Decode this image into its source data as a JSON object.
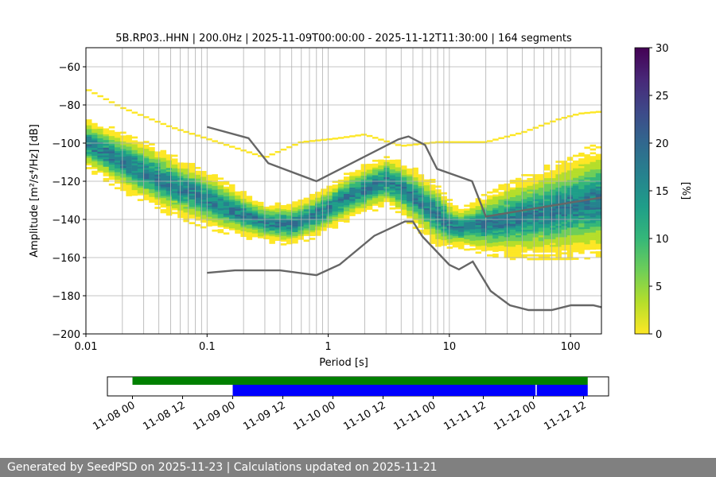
{
  "chart_data": {
    "type": "heatmap",
    "title": "5B.RP03..HHN | 200.0Hz | 2025-11-09T00:00:00 - 2025-11-12T11:30:00 | 164 segments",
    "xlabel": "Period [s]",
    "ylabel": "Amplitude [m²/s⁴/Hz] [dB]",
    "xscale": "log",
    "xlim": [
      0.01,
      180
    ],
    "ylim": [
      -200,
      -50
    ],
    "x_ticks": [
      {
        "value": 0.01,
        "label": "0.01"
      },
      {
        "value": 0.1,
        "label": "0.1"
      },
      {
        "value": 1,
        "label": "1"
      },
      {
        "value": 10,
        "label": "10"
      },
      {
        "value": 100,
        "label": "100"
      }
    ],
    "y_ticks": [
      {
        "value": -60,
        "label": "−60"
      },
      {
        "value": -80,
        "label": "−80"
      },
      {
        "value": -100,
        "label": "−100"
      },
      {
        "value": -120,
        "label": "−120"
      },
      {
        "value": -140,
        "label": "−140"
      },
      {
        "value": -160,
        "label": "−160"
      },
      {
        "value": -180,
        "label": "−180"
      },
      {
        "value": -200,
        "label": "−200"
      }
    ],
    "colorbar": {
      "label": "[%]",
      "range": [
        0,
        30
      ],
      "ticks": [
        {
          "value": 0,
          "label": "0"
        },
        {
          "value": 5,
          "label": "5"
        },
        {
          "value": 10,
          "label": "10"
        },
        {
          "value": 15,
          "label": "15"
        },
        {
          "value": 20,
          "label": "20"
        },
        {
          "value": 25,
          "label": "25"
        },
        {
          "value": 30,
          "label": "30"
        }
      ],
      "colors": [
        "#fde725",
        "#b5de2b",
        "#6ece58",
        "#35b779",
        "#1f9e89",
        "#26828e",
        "#31688e",
        "#3e4989",
        "#482878",
        "#440154"
      ]
    },
    "psd_mode": [
      [
        0.01,
        -100
      ],
      [
        0.02,
        -110
      ],
      [
        0.05,
        -122
      ],
      [
        0.1,
        -130
      ],
      [
        0.2,
        -138
      ],
      [
        0.3,
        -142
      ],
      [
        0.5,
        -143
      ],
      [
        0.8,
        -138
      ],
      [
        1.5,
        -128
      ],
      [
        3,
        -120
      ],
      [
        4,
        -124
      ],
      [
        6,
        -132
      ],
      [
        10,
        -143
      ],
      [
        12,
        -145
      ],
      [
        20,
        -143
      ],
      [
        50,
        -138
      ],
      [
        100,
        -134
      ],
      [
        180,
        -130
      ]
    ],
    "psd_spread": [
      [
        0.01,
        8
      ],
      [
        0.03,
        10
      ],
      [
        0.1,
        9
      ],
      [
        0.3,
        6
      ],
      [
        0.8,
        7
      ],
      [
        3,
        8
      ],
      [
        8,
        10
      ],
      [
        12,
        6
      ],
      [
        30,
        12
      ],
      [
        100,
        16
      ],
      [
        180,
        18
      ]
    ],
    "psd_outliers": [
      [
        0.01,
        -72
      ],
      [
        0.02,
        -82
      ],
      [
        0.05,
        -92
      ],
      [
        0.3,
        -108
      ],
      [
        0.6,
        -100
      ],
      [
        1.2,
        -98
      ],
      [
        2,
        -96
      ],
      [
        4,
        -102
      ],
      [
        8,
        -100
      ],
      [
        20,
        -100
      ],
      [
        40,
        -95
      ],
      [
        80,
        -88
      ],
      [
        120,
        -85
      ],
      [
        180,
        -84
      ]
    ],
    "nhnm": [
      [
        0.1,
        -91.5
      ],
      [
        0.22,
        -97.4
      ],
      [
        0.32,
        -110.5
      ],
      [
        0.8,
        -120
      ],
      [
        3.8,
        -98
      ],
      [
        4.6,
        -96.5
      ],
      [
        6.3,
        -101
      ],
      [
        7.9,
        -113.5
      ],
      [
        15.4,
        -120
      ],
      [
        20,
        -138.5
      ],
      [
        180,
        -128.5
      ]
    ],
    "nlnm": [
      [
        0.1,
        -168
      ],
      [
        0.17,
        -166.7
      ],
      [
        0.4,
        -166.7
      ],
      [
        0.8,
        -169.2
      ],
      [
        1.24,
        -163.7
      ],
      [
        2.4,
        -148.6
      ],
      [
        4.3,
        -141.1
      ],
      [
        5,
        -141.1
      ],
      [
        6,
        -149
      ],
      [
        10,
        -163.8
      ],
      [
        12,
        -166.2
      ],
      [
        15.6,
        -162.1
      ],
      [
        21.9,
        -177.5
      ],
      [
        31.6,
        -185
      ],
      [
        45,
        -187.5
      ],
      [
        70,
        -187.5
      ],
      [
        101,
        -185
      ],
      [
        154,
        -185
      ],
      [
        180,
        -186
      ]
    ],
    "timeline": {
      "ticks": [
        "11-08 00",
        "11-08 12",
        "11-09 00",
        "11-09 12",
        "11-10 00",
        "11-10 12",
        "11-11 00",
        "11-11 12",
        "11-12 00",
        "11-12 12"
      ],
      "range_hours": [
        -6,
        114
      ],
      "available": [
        {
          "start_h": 0,
          "end_h": 109
        }
      ],
      "used": [
        {
          "start_h": 24,
          "end_h": 96.5
        },
        {
          "start_h": 96.8,
          "end_h": 109
        }
      ],
      "available_color": "#008000",
      "used_color": "#0000ff"
    }
  },
  "footer": {
    "text": "Generated by SeedPSD on 2025-11-23 | Calculations updated on 2025-11-21"
  }
}
